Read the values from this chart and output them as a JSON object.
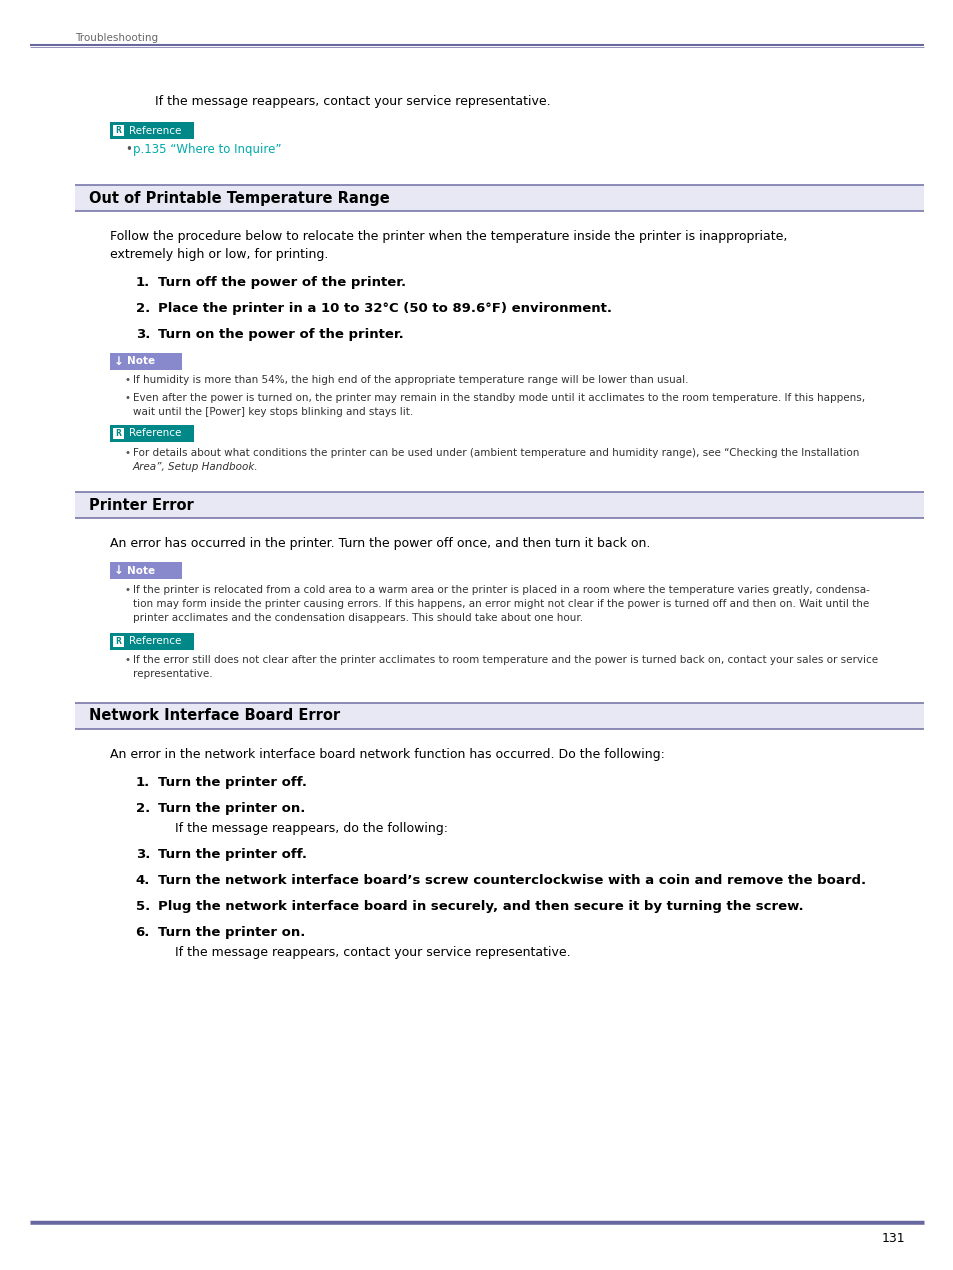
{
  "page_background": "#ffffff",
  "header_text": "Troubleshooting",
  "header_line_color": "#6868a0",
  "page_number": "131",
  "section_bg_color": "#e8e8f4",
  "section_line_color": "#7878aa",
  "note_bg_color": "#8888cc",
  "reference_bg_color": "#008888",
  "link_color": "#00aaaa",
  "small_text_color": "#333333",
  "content": {
    "intro_text": "If the message reappears, contact your service representative.",
    "reference_link": "p.135 “Where to Inquire”",
    "section1_title": "Out of Printable Temperature Range",
    "section1_body1": "Follow the procedure below to relocate the printer when the temperature inside the printer is inappropriate,",
    "section1_body2": "extremely high or low, for printing.",
    "section1_steps": [
      "Turn off the power of the printer.",
      "Place the printer in a 10 to 32°C (50 to 89.6°F) environment.",
      "Turn on the power of the printer."
    ],
    "section1_notes": [
      "If humidity is more than 54%, the high end of the appropriate temperature range will be lower than usual.",
      "Even after the power is turned on, the printer may remain in the standby mode until it acclimates to the room temperature. If this happens,",
      "wait until the [Power] key stops blinking and stays lit."
    ],
    "section1_ref1": "For details about what conditions the printer can be used under (ambient temperature and humidity range), see “Checking the Installation",
    "section1_ref2": "Area”, Setup Handbook.",
    "section2_title": "Printer Error",
    "section2_body": "An error has occurred in the printer. Turn the power off once, and then turn it back on.",
    "section2_notes": [
      "If the printer is relocated from a cold area to a warm area or the printer is placed in a room where the temperature varies greatly, condensa-",
      "tion may form inside the printer causing errors. If this happens, an error might not clear if the power is turned off and then on. Wait until the",
      "printer acclimates and the condensation disappears. This should take about one hour."
    ],
    "section2_ref1": "If the error still does not clear after the printer acclimates to room temperature and the power is turned back on, contact your sales or service",
    "section2_ref2": "representative.",
    "section3_title": "Network Interface Board Error",
    "section3_body": "An error in the network interface board network function has occurred. Do the following:",
    "section3_steps": [
      "Turn the printer off.",
      "Turn the printer on.",
      "Turn the printer off.",
      "Turn the network interface board’s screw counterclockwise with a coin and remove the board.",
      "Plug the network interface board in securely, and then secure it by turning the screw.",
      "Turn the printer on."
    ],
    "section3_step2_note": "If the message reappears, do the following:",
    "section3_final_note": "If the message reappears, contact your service representative."
  }
}
